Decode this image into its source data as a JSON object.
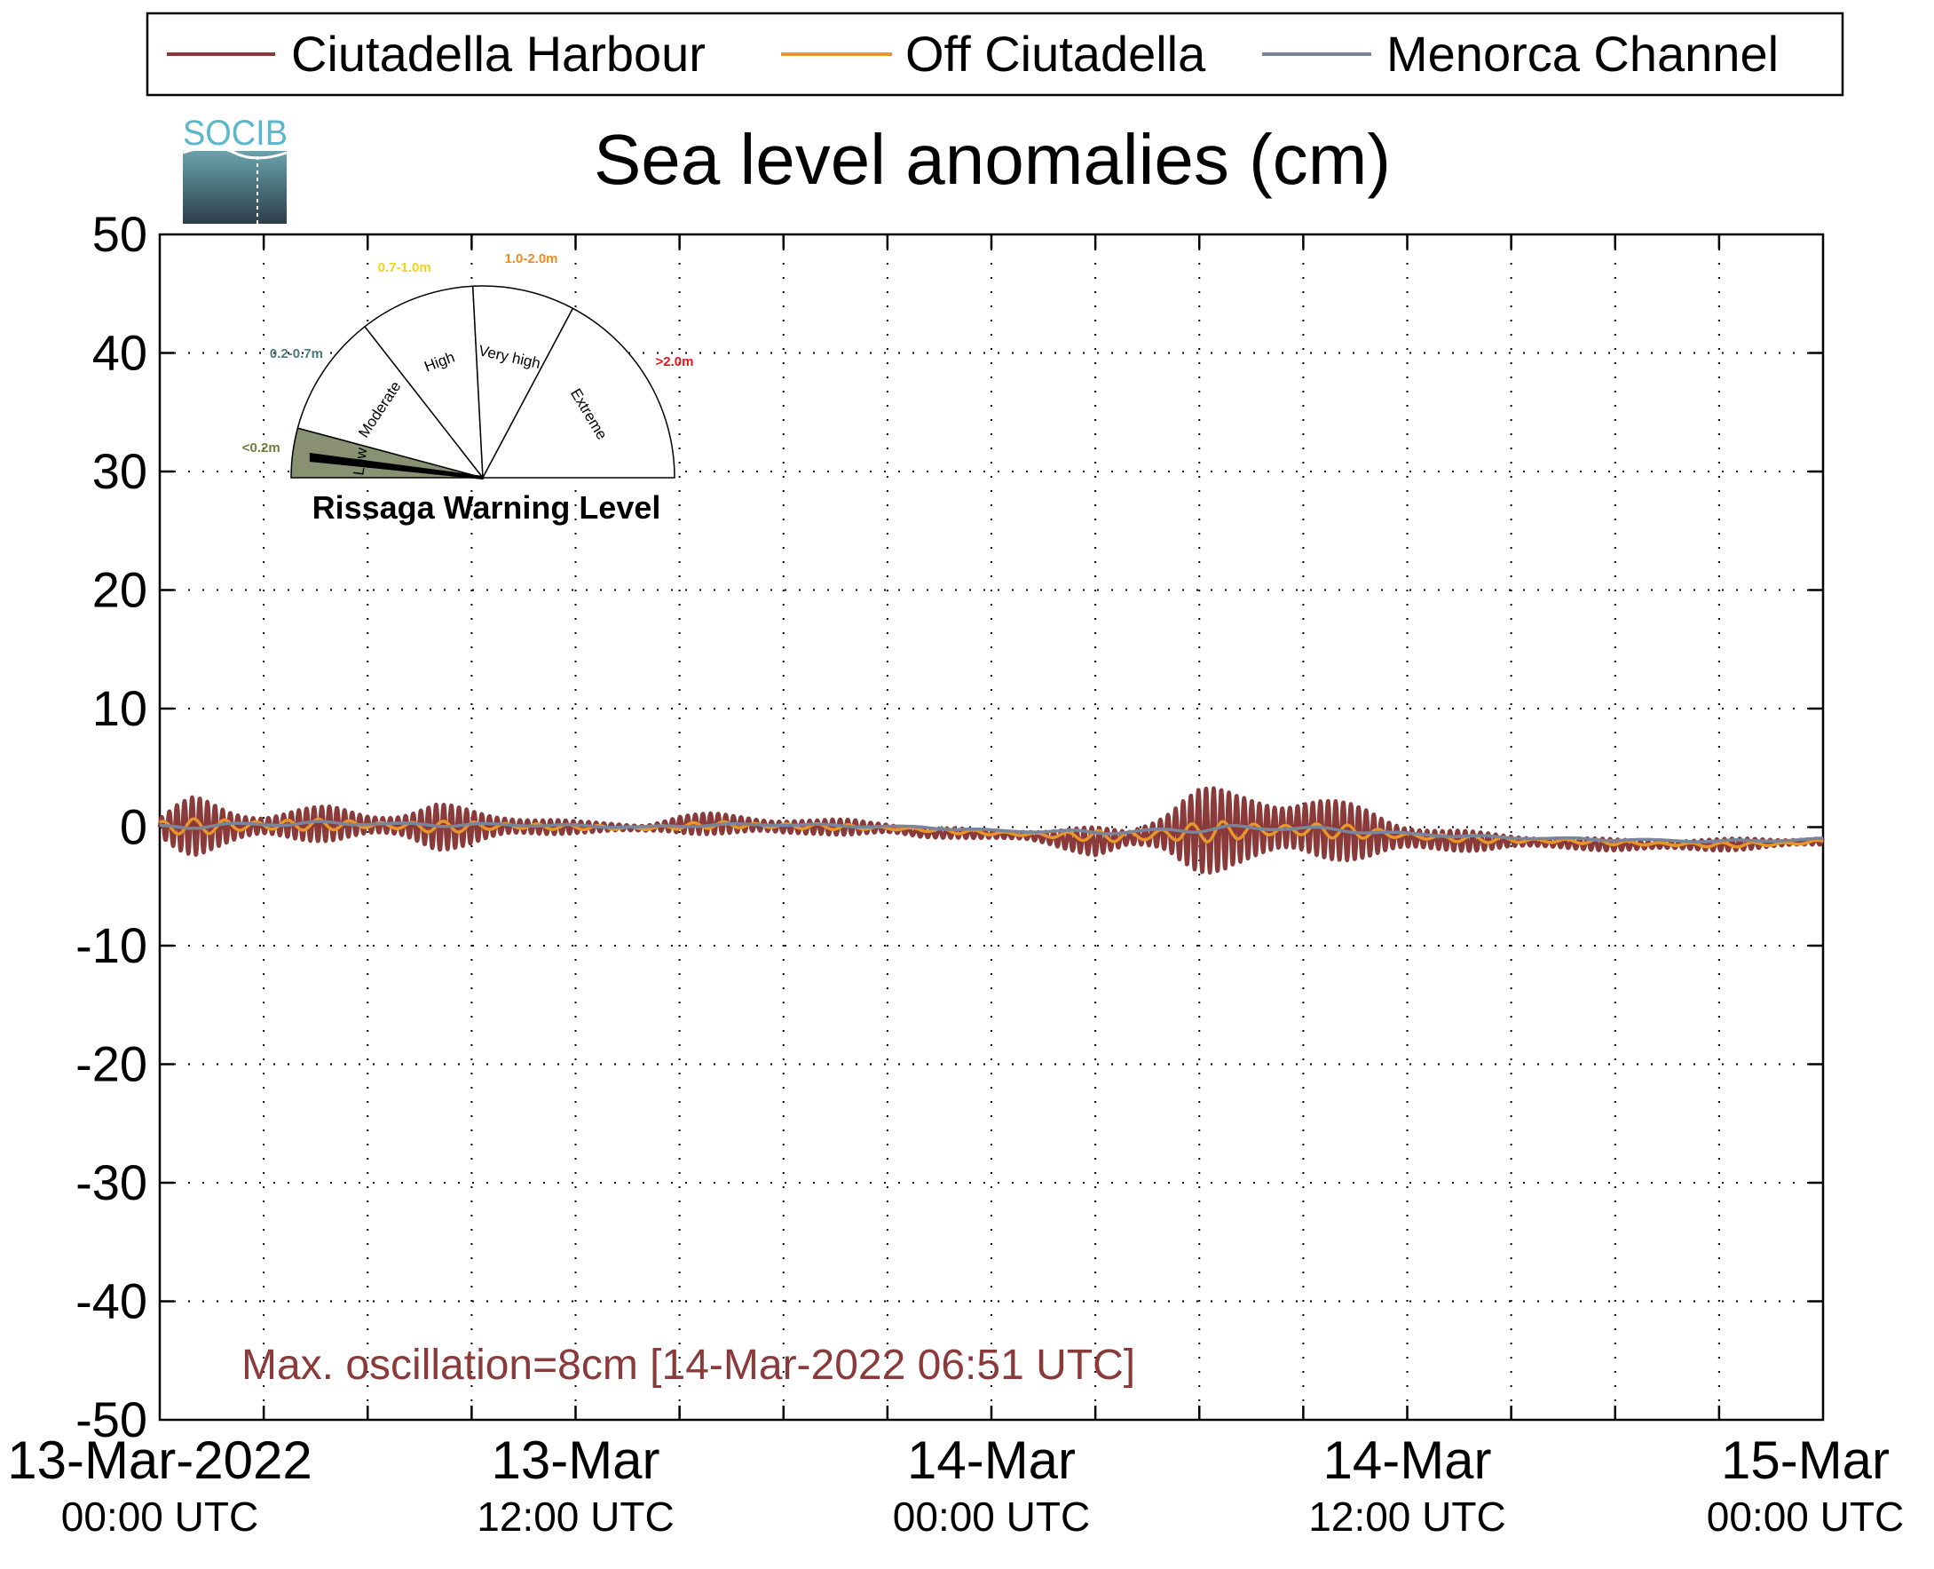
{
  "chart_data": {
    "type": "line",
    "title": "Sea level anomalies (cm)",
    "ylim": [
      -50,
      50
    ],
    "yticks": [
      50,
      40,
      30,
      20,
      10,
      0,
      -10,
      -20,
      -30,
      -40,
      -50
    ],
    "xlim_hours": [
      0,
      48
    ],
    "x_tick_labels": [
      {
        "hours": 0,
        "date": "13-Mar-2022",
        "time": "00:00 UTC"
      },
      {
        "hours": 12,
        "date": "13-Mar",
        "time": "12:00 UTC"
      },
      {
        "hours": 24,
        "date": "14-Mar",
        "time": "00:00 UTC"
      },
      {
        "hours": 36,
        "date": "14-Mar",
        "time": "12:00 UTC"
      },
      {
        "hours": 48,
        "date": "15-Mar",
        "time": "00:00 UTC"
      }
    ],
    "grid": true,
    "legend_position": "top",
    "legend": [
      {
        "name": "Ciutadella Harbour",
        "color": "#8b3a3a"
      },
      {
        "name": "Off Ciutadella",
        "color": "#e8962a"
      },
      {
        "name": "Menorca Channel",
        "color": "#7a859c"
      }
    ],
    "series": [
      {
        "name": "Ciutadella Harbour",
        "color": "#8b3a3a",
        "x": [
          0,
          0.5,
          1,
          2,
          3,
          4,
          5,
          6,
          7,
          8,
          9,
          10,
          11,
          12,
          13,
          14,
          15,
          16,
          17,
          18,
          19,
          20,
          21,
          22,
          23,
          24,
          25,
          26,
          27,
          28,
          29,
          29.5,
          30,
          31,
          32,
          33,
          34,
          35,
          36,
          37,
          38,
          39,
          40,
          41,
          42,
          43,
          44,
          45,
          46,
          47,
          48
        ],
        "mean": [
          0,
          0,
          0.1,
          0,
          0.1,
          0.2,
          0.3,
          0.2,
          0.1,
          0,
          0,
          0.1,
          0,
          0,
          0,
          -0.1,
          0.2,
          0.3,
          0.2,
          0,
          0,
          0,
          -0.1,
          -0.5,
          -0.5,
          -0.6,
          -0.7,
          -1,
          -1.2,
          -0.9,
          -0.5,
          -0.4,
          -0.3,
          -0.2,
          -0.1,
          0,
          -0.3,
          -0.6,
          -0.9,
          -1.1,
          -1.2,
          -1.2,
          -1.3,
          -1.4,
          -1.5,
          -1.5,
          -1.5,
          -1.5,
          -1.4,
          -1.3,
          -1.2
        ],
        "amplitude": [
          1,
          2,
          2.5,
          1.8,
          1.2,
          1.4,
          1.5,
          1.2,
          1.3,
          2,
          1.6,
          1.2,
          0.8,
          0.5,
          0.4,
          0.4,
          0.8,
          0.9,
          0.9,
          0.8,
          0.6,
          0.7,
          0.6,
          0.5,
          0.4,
          0.4,
          0.6,
          0.9,
          1.2,
          0.8,
          2.5,
          3.5,
          3.8,
          3.2,
          3.5,
          3,
          2.5,
          2.2,
          1.5,
          1,
          0.8,
          0.6,
          0.6,
          0.5,
          0.5,
          0.5,
          0.5,
          0.5,
          0.5,
          0.4,
          0.4
        ]
      },
      {
        "name": "Off Ciutadella",
        "color": "#e8962a",
        "x": [
          0,
          2,
          4,
          6,
          8,
          10,
          12,
          14,
          16,
          18,
          20,
          22,
          24,
          26,
          28,
          29.5,
          31,
          33,
          35,
          37,
          39,
          41,
          43,
          45,
          47,
          48
        ],
        "mean": [
          0,
          0.1,
          0.2,
          0.2,
          0,
          0.1,
          0,
          -0.1,
          0.2,
          0.1,
          0,
          -0.2,
          -0.5,
          -0.7,
          -0.8,
          -0.5,
          -0.3,
          -0.2,
          -0.5,
          -0.9,
          -1.1,
          -1.2,
          -1.4,
          -1.5,
          -1.4,
          -1.2
        ],
        "amplitude": [
          0.6,
          0.7,
          0.5,
          0.4,
          0.5,
          0.4,
          0.2,
          0.2,
          0.3,
          0.3,
          0.2,
          0.2,
          0.2,
          0.3,
          0.6,
          0.9,
          0.8,
          0.7,
          0.5,
          0.3,
          0.3,
          0.2,
          0.2,
          0.2,
          0.2,
          0.2
        ]
      },
      {
        "name": "Menorca Channel",
        "color": "#7a859c",
        "x": [
          0,
          2,
          4,
          6,
          8,
          10,
          12,
          14,
          16,
          18,
          20,
          22,
          24,
          26,
          28,
          29.5,
          31,
          33,
          35,
          37,
          39,
          41,
          43,
          45,
          47,
          48
        ],
        "mean": [
          0,
          0.2,
          0.3,
          0.3,
          0.2,
          0.2,
          0.1,
          0,
          0.2,
          0.2,
          0.1,
          0,
          -0.3,
          -0.4,
          -0.4,
          -0.2,
          -0.1,
          -0.1,
          -0.4,
          -0.7,
          -0.9,
          -1,
          -1.1,
          -1.2,
          -1.1,
          -1
        ],
        "amplitude": [
          0.2,
          0.2,
          0.2,
          0.15,
          0.15,
          0.15,
          0.1,
          0.1,
          0.1,
          0.1,
          0.1,
          0.1,
          0.1,
          0.15,
          0.2,
          0.3,
          0.25,
          0.2,
          0.15,
          0.1,
          0.1,
          0.1,
          0.1,
          0.1,
          0.1,
          0.1
        ]
      }
    ],
    "annotation": {
      "text": "Max. oscillation=8cm [14-Mar-2022 06:51 UTC]",
      "color": "#8b3a3a"
    }
  },
  "logo": {
    "text": "SOCIB"
  },
  "gauge": {
    "title": "Rissaga Warning Level",
    "current_level": "Low",
    "sectors": [
      {
        "name": "Low",
        "range": "<0.2m",
        "color": "#6b7f3a"
      },
      {
        "name": "Moderate",
        "range": "0.2-0.7m",
        "color": "#4a7a7a"
      },
      {
        "name": "High",
        "range": "0.7-1.0m",
        "color": "#f2d31b"
      },
      {
        "name": "Very high",
        "range": "1.0-2.0m",
        "color": "#f08a1c"
      },
      {
        "name": "Extreme",
        "range": ">2.0m",
        "color": "#e8141c"
      }
    ]
  }
}
